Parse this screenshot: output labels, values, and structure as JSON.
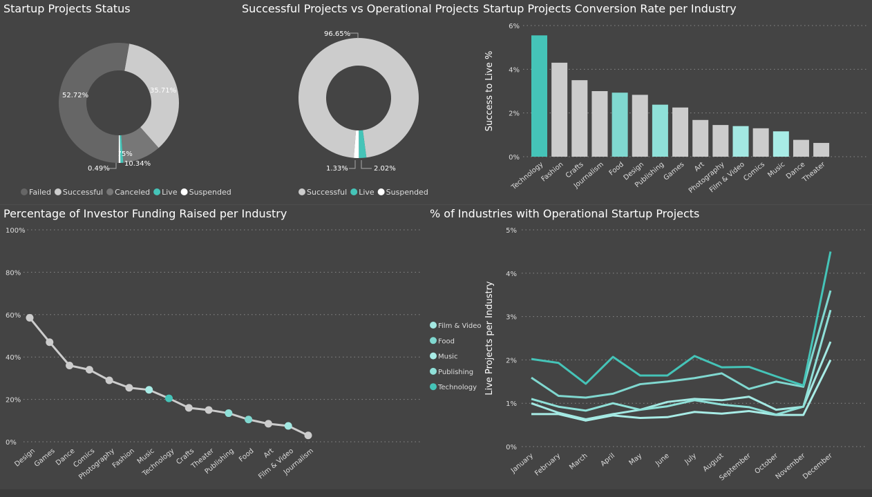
{
  "colors": {
    "background": "#444444",
    "grid": "#8a8a8a",
    "gray": "#cccccc",
    "failed": "#666666",
    "canceled": "#777777",
    "live": "#45c4b8",
    "suspended": "#ffffff",
    "text": "#ffffff",
    "tick": "#dddddd"
  },
  "titles": {
    "status": "Startup Projects Status",
    "ops": "Successful Projects vs Operational Projects",
    "conversion": "Startup Projects Conversion Rate per Industry",
    "funding": "Percentage of Investor Funding Raised per Industry",
    "live": "% of Industries with Operational Startup Projects"
  },
  "chart_data": [
    {
      "type": "pie",
      "variant": "donut",
      "title": "Startup Projects Status",
      "slices": [
        {
          "name": "Successful",
          "value": 35.71,
          "label": "35.71%",
          "color": "#cccccc"
        },
        {
          "name": "Canceled",
          "value": 10.34,
          "label": "10.34%",
          "color": "#777777"
        },
        {
          "name": "Live",
          "value": 0.75,
          "label": "0.75%",
          "color": "#45c4b8"
        },
        {
          "name": "Suspended",
          "value": 0.49,
          "label": "0.49%",
          "color": "#ffffff"
        },
        {
          "name": "Failed",
          "value": 52.72,
          "label": "52.72%",
          "color": "#666666"
        }
      ],
      "legend": [
        "Failed",
        "Successful",
        "Canceled",
        "Live",
        "Suspended"
      ],
      "legend_position": "bottom"
    },
    {
      "type": "pie",
      "variant": "donut",
      "title": "Successful Projects vs Operational Projects",
      "slices": [
        {
          "name": "Successful",
          "value": 96.65,
          "label": "96.65%",
          "color": "#cccccc"
        },
        {
          "name": "Live",
          "value": 2.02,
          "label": "2.02%",
          "color": "#45c4b8"
        },
        {
          "name": "Suspended",
          "value": 1.33,
          "label": "1.33%",
          "color": "#ffffff"
        }
      ],
      "legend": [
        "Successful",
        "Live",
        "Suspended"
      ],
      "legend_position": "bottom"
    },
    {
      "type": "bar",
      "title": "Startup Projects Conversion Rate per Industry",
      "ylabel": "Success to Live %",
      "ylim": [
        0,
        6
      ],
      "yticks": [
        "0%",
        "2%",
        "4%",
        "6%"
      ],
      "grid": true,
      "categories": [
        "Technology",
        "Fashion",
        "Crafts",
        "Journalism",
        "Food",
        "Design",
        "Publishing",
        "Games",
        "Art",
        "Photography",
        "Film & Video",
        "Comics",
        "Music",
        "Dance",
        "Theater"
      ],
      "values": [
        5.55,
        4.3,
        3.5,
        3.0,
        2.93,
        2.83,
        2.38,
        2.25,
        1.68,
        1.45,
        1.4,
        1.3,
        1.16,
        0.77,
        0.63
      ],
      "bar_colors": [
        "#45c4b8",
        "#cccccc",
        "#cccccc",
        "#cccccc",
        "#80d8d0",
        "#cccccc",
        "#8fe0d8",
        "#cccccc",
        "#cccccc",
        "#cccccc",
        "#a3e8e2",
        "#cccccc",
        "#a8ece6",
        "#cccccc",
        "#cccccc"
      ]
    },
    {
      "type": "line",
      "title": "Percentage of Investor Funding Raised per Industry",
      "ylim": [
        0,
        100
      ],
      "yticks": [
        "0%",
        "20%",
        "40%",
        "60%",
        "80%",
        "100%"
      ],
      "grid": true,
      "categories": [
        "Design",
        "Games",
        "Dance",
        "Comics",
        "Photography",
        "Fashion",
        "Music",
        "Technology",
        "Crafts",
        "Theater",
        "Publishing",
        "Food",
        "Art",
        "Film & Video",
        "Journalism"
      ],
      "values": [
        58.5,
        47,
        36,
        34,
        29,
        25.5,
        24.5,
        20.5,
        16,
        15,
        13.5,
        10.5,
        8.5,
        7.5,
        3
      ],
      "point_colors": [
        "#cccccc",
        "#cccccc",
        "#cccccc",
        "#cccccc",
        "#cccccc",
        "#cccccc",
        "#a8ece6",
        "#45c4b8",
        "#cccccc",
        "#cccccc",
        "#8fe0d8",
        "#80d8d0",
        "#cccccc",
        "#a3e8e2",
        "#cccccc"
      ]
    },
    {
      "type": "line",
      "title": "% of Industries with Operational Startup Projects",
      "ylabel": "Live Projects per Industry",
      "ylim": [
        0,
        5
      ],
      "yticks": [
        "0%",
        "1%",
        "2%",
        "3%",
        "4%",
        "5%"
      ],
      "grid": true,
      "categories": [
        "January",
        "February",
        "March",
        "April",
        "May",
        "June",
        "July",
        "August",
        "September",
        "October",
        "November",
        "December"
      ],
      "legend_position": "left",
      "series": [
        {
          "name": "Film & Video",
          "color": "#a3e8e2",
          "values": [
            1.0,
            0.78,
            0.63,
            0.75,
            0.85,
            1.03,
            1.1,
            1.07,
            1.15,
            0.85,
            0.92,
            2.42
          ]
        },
        {
          "name": "Food",
          "color": "#80d8d0",
          "values": [
            1.59,
            1.17,
            1.13,
            1.22,
            1.44,
            1.5,
            1.58,
            1.69,
            1.33,
            1.5,
            1.38,
            3.6
          ]
        },
        {
          "name": "Music",
          "color": "#a8ece6",
          "values": [
            0.75,
            0.75,
            0.6,
            0.72,
            0.66,
            0.68,
            0.8,
            0.76,
            0.82,
            0.73,
            0.73,
            2.0
          ]
        },
        {
          "name": "Publishing",
          "color": "#8fe0d8",
          "values": [
            1.1,
            0.92,
            0.83,
            1.0,
            0.85,
            0.93,
            1.07,
            0.97,
            0.91,
            0.74,
            0.92,
            3.15
          ]
        },
        {
          "name": "Technology",
          "color": "#45c4b8",
          "values": [
            2.02,
            1.93,
            1.45,
            2.07,
            1.64,
            1.64,
            2.09,
            1.83,
            1.84,
            1.62,
            1.41,
            4.5
          ]
        }
      ]
    }
  ]
}
